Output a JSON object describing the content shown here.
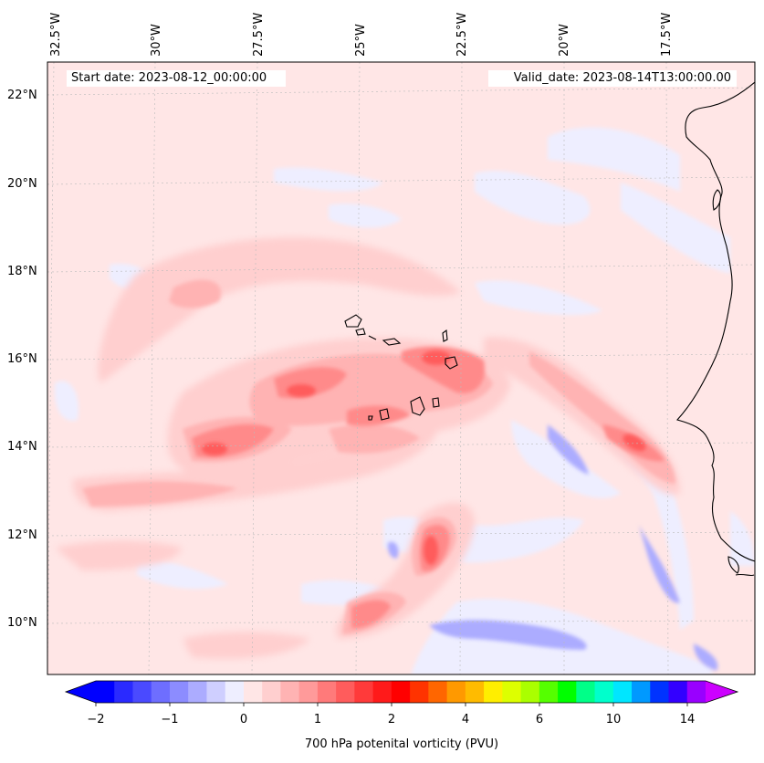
{
  "map": {
    "start_date": "Start date: 2023-08-12_00:00:00",
    "valid_date": "Valid_date: 2023-08-14T13:00:00.00",
    "longitude_labels": [
      "32.5°W",
      "30°W",
      "27.5°W",
      "25°W",
      "22.5°W",
      "20°W",
      "17.5°W"
    ],
    "latitude_labels": [
      "22°N",
      "20°N",
      "18°N",
      "16°N",
      "14°N",
      "12°N",
      "10°N"
    ]
  },
  "colorbar": {
    "title": "700 hPa potenital vorticity (PVU)",
    "tick_labels": [
      "−2",
      "−1",
      "0",
      "1",
      "2",
      "4",
      "6",
      "10",
      "14"
    ],
    "colors": [
      "#0000ff",
      "#2a2aff",
      "#4a4aff",
      "#6e6eff",
      "#8c8cff",
      "#acacff",
      "#cfcfff",
      "#eeeeff",
      "#ffe6e6",
      "#ffcfcf",
      "#ffb3b3",
      "#ff9a9a",
      "#ff7a7a",
      "#ff5c5c",
      "#ff3a3a",
      "#ff1a1a",
      "#ff0000",
      "#ff3300",
      "#ff6600",
      "#ff9900",
      "#ffbb00",
      "#ffee00",
      "#ddff00",
      "#aaff00",
      "#55ff00",
      "#00ff00",
      "#00ff88",
      "#00ffcc",
      "#00e6ff",
      "#0099ff",
      "#0033ff",
      "#3300ff",
      "#9900ff"
    ],
    "extend_low_color": "#0000ff",
    "extend_high_color": "#cc00ff"
  }
}
